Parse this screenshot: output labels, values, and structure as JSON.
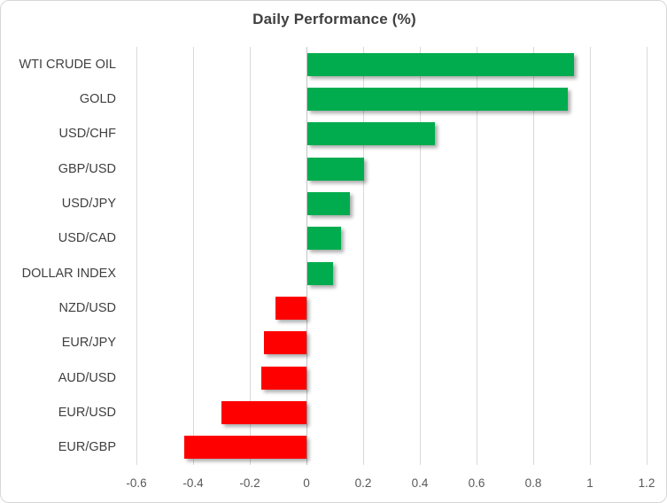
{
  "chart_data": {
    "type": "bar",
    "orientation": "horizontal",
    "title": "Daily Performance (%)",
    "categories": [
      "WTI CRUDE OIL",
      "GOLD",
      "USD/CHF",
      "GBP/USD",
      "USD/JPY",
      "USD/CAD",
      "DOLLAR INDEX",
      "NZD/USD",
      "EUR/JPY",
      "AUD/USD",
      "EUR/USD",
      "EUR/GBP"
    ],
    "values": [
      0.94,
      0.92,
      0.45,
      0.2,
      0.15,
      0.12,
      0.09,
      -0.11,
      -0.15,
      -0.16,
      -0.3,
      -0.43
    ],
    "xlabel": "",
    "ylabel": "",
    "xlim": [
      -0.6,
      1.2
    ],
    "xticks": [
      -0.6,
      -0.4,
      -0.2,
      0,
      0.2,
      0.4,
      0.6,
      0.8,
      1,
      1.2
    ],
    "xtick_labels": [
      "-0.6",
      "-0.4",
      "-0.2",
      "0",
      "0.2",
      "0.4",
      "0.6",
      "0.8",
      "1",
      "1.2"
    ],
    "grid": true,
    "legend": false,
    "colors": {
      "positive": "#00ac4e",
      "negative": "#ff0000",
      "gridline": "#d9d9d9",
      "title_text": "#404040",
      "category_text": "#404040",
      "tick_text": "#595959"
    }
  }
}
